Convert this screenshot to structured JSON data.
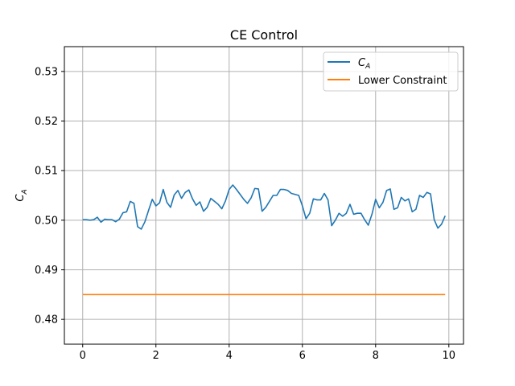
{
  "chart_data": {
    "type": "line",
    "title": "CE Control",
    "xlabel": "",
    "ylabel": "C_A",
    "ylabel_main": "C",
    "ylabel_sub": "A",
    "xlim": [
      -0.5,
      10.4
    ],
    "ylim": [
      0.475,
      0.535
    ],
    "xticks": [
      0,
      2,
      4,
      6,
      8,
      10
    ],
    "xtick_labels": [
      "0",
      "2",
      "4",
      "6",
      "8",
      "10"
    ],
    "yticks": [
      0.48,
      0.49,
      0.5,
      0.51,
      0.52,
      0.53
    ],
    "ytick_labels": [
      "0.48",
      "0.49",
      "0.50",
      "0.51",
      "0.52",
      "0.53"
    ],
    "grid": true,
    "legend_position": "top-right",
    "series": [
      {
        "name": "C_A",
        "legend_main": "C",
        "legend_sub": "A",
        "color": "#1f77b4",
        "x": [
          0.0,
          0.1,
          0.2,
          0.3,
          0.4,
          0.5,
          0.6,
          0.7,
          0.8,
          0.9,
          1.0,
          1.1,
          1.2,
          1.3,
          1.4,
          1.5,
          1.6,
          1.7,
          1.8,
          1.9,
          2.0,
          2.1,
          2.2,
          2.3,
          2.4,
          2.5,
          2.6,
          2.7,
          2.8,
          2.9,
          3.0,
          3.1,
          3.2,
          3.3,
          3.4,
          3.5,
          3.6,
          3.7,
          3.8,
          3.9,
          4.0,
          4.1,
          4.2,
          4.3,
          4.4,
          4.5,
          4.6,
          4.7,
          4.8,
          4.9,
          5.0,
          5.1,
          5.2,
          5.3,
          5.4,
          5.5,
          5.6,
          5.7,
          5.8,
          5.9,
          6.0,
          6.1,
          6.2,
          6.3,
          6.4,
          6.5,
          6.6,
          6.7,
          6.8,
          6.9,
          7.0,
          7.1,
          7.2,
          7.3,
          7.4,
          7.5,
          7.6,
          7.7,
          7.8,
          7.9,
          8.0,
          8.1,
          8.2,
          8.3,
          8.4,
          8.5,
          8.6,
          8.7,
          8.8,
          8.9,
          9.0,
          9.1,
          9.2,
          9.3,
          9.4,
          9.5,
          9.6,
          9.7,
          9.8,
          9.9
        ],
        "y": [
          0.5001,
          0.5001,
          0.5,
          0.5001,
          0.5006,
          0.4996,
          0.5002,
          0.5001,
          0.5001,
          0.4997,
          0.5002,
          0.5015,
          0.5017,
          0.5038,
          0.5034,
          0.4987,
          0.4982,
          0.4997,
          0.502,
          0.5042,
          0.5029,
          0.5035,
          0.5062,
          0.5036,
          0.5026,
          0.5051,
          0.506,
          0.5044,
          0.5056,
          0.5061,
          0.5043,
          0.503,
          0.5037,
          0.5018,
          0.5026,
          0.5044,
          0.5038,
          0.5032,
          0.5023,
          0.5039,
          0.5062,
          0.5071,
          0.5062,
          0.5052,
          0.5042,
          0.5034,
          0.5045,
          0.5064,
          0.5063,
          0.5018,
          0.5026,
          0.5038,
          0.505,
          0.505,
          0.5062,
          0.5062,
          0.506,
          0.5054,
          0.5052,
          0.505,
          0.5029,
          0.5003,
          0.5014,
          0.5043,
          0.5041,
          0.5041,
          0.5054,
          0.5041,
          0.4989,
          0.5,
          0.5014,
          0.5008,
          0.5014,
          0.5032,
          0.5012,
          0.5014,
          0.5014,
          0.5001,
          0.499,
          0.5012,
          0.5042,
          0.5025,
          0.5036,
          0.506,
          0.5063,
          0.5022,
          0.5025,
          0.5046,
          0.5039,
          0.5043,
          0.5017,
          0.5022,
          0.505,
          0.5046,
          0.5056,
          0.5053,
          0.5001,
          0.4984,
          0.4992,
          0.5009
        ]
      },
      {
        "name": "Lower Constraint",
        "color": "#ff7f0e",
        "x": [
          0.0,
          9.9
        ],
        "y": [
          0.485,
          0.485
        ]
      }
    ]
  }
}
